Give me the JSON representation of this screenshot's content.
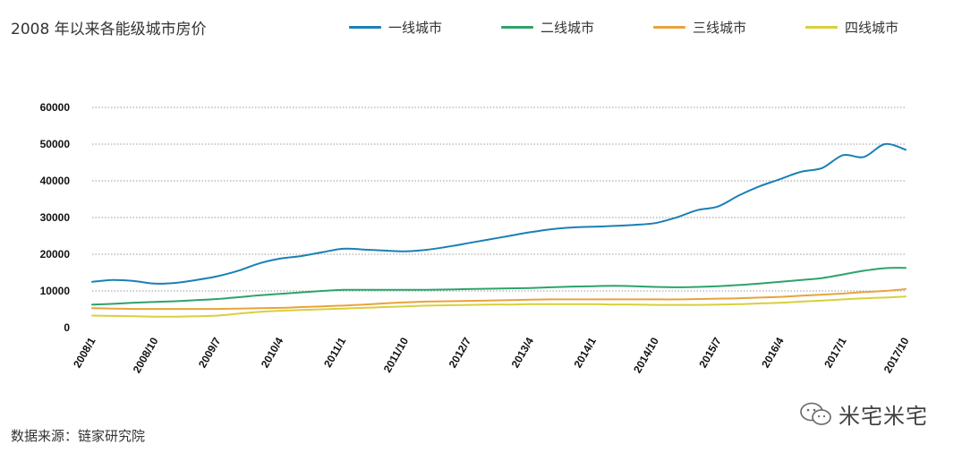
{
  "chart_data": {
    "type": "line",
    "title": "2008 年以来各能级城市房价",
    "xlabel": "",
    "ylabel": "",
    "x_tick_labels": [
      "2008/1",
      "2008/10",
      "2009/7",
      "2010/4",
      "2011/1",
      "2011/10",
      "2012/7",
      "2013/4",
      "2014/1",
      "2014/10",
      "2015/7",
      "2016/4",
      "2017/1",
      "2017/10"
    ],
    "y_ticks": [
      0,
      10000,
      20000,
      30000,
      40000,
      50000,
      60000
    ],
    "ylim": [
      0,
      60000
    ],
    "grid": "horizontal dotted",
    "legend_placement": "top",
    "months": [
      "2008/1",
      "2008/4",
      "2008/7",
      "2008/10",
      "2009/1",
      "2009/4",
      "2009/7",
      "2009/10",
      "2010/1",
      "2010/4",
      "2010/7",
      "2010/10",
      "2011/1",
      "2011/4",
      "2011/7",
      "2011/10",
      "2012/1",
      "2012/4",
      "2012/7",
      "2012/10",
      "2013/1",
      "2013/4",
      "2013/7",
      "2013/10",
      "2014/1",
      "2014/4",
      "2014/7",
      "2014/10",
      "2015/1",
      "2015/4",
      "2015/7",
      "2015/10",
      "2016/1",
      "2016/4",
      "2016/7",
      "2016/10",
      "2017/1",
      "2017/4",
      "2017/7",
      "2017/10"
    ],
    "series": [
      {
        "name": "一线城市",
        "color": "#1a80b6",
        "values": [
          12500,
          13000,
          12700,
          12000,
          12200,
          13000,
          14000,
          15500,
          17500,
          18800,
          19500,
          20500,
          21500,
          21300,
          21000,
          20800,
          21200,
          22000,
          23000,
          24000,
          25000,
          26000,
          26800,
          27300,
          27500,
          27700,
          28000,
          28500,
          30000,
          32000,
          33000,
          36000,
          38500,
          40500,
          42500,
          43500,
          47000,
          46500,
          50000,
          48500
        ]
      },
      {
        "name": "二线城市",
        "color": "#2ea36b",
        "values": [
          6300,
          6500,
          6800,
          7000,
          7200,
          7500,
          7800,
          8300,
          8800,
          9200,
          9600,
          10000,
          10300,
          10300,
          10300,
          10300,
          10300,
          10400,
          10500,
          10600,
          10700,
          10800,
          11000,
          11200,
          11300,
          11400,
          11300,
          11100,
          11000,
          11100,
          11300,
          11600,
          12000,
          12500,
          13000,
          13500,
          14500,
          15500,
          16200,
          16300
        ]
      },
      {
        "name": "三线城市",
        "color": "#e8a33c",
        "values": [
          5300,
          5200,
          5100,
          5100,
          5100,
          5100,
          5100,
          5200,
          5300,
          5400,
          5600,
          5800,
          6000,
          6300,
          6600,
          6900,
          7100,
          7200,
          7300,
          7400,
          7500,
          7600,
          7700,
          7700,
          7700,
          7700,
          7700,
          7700,
          7700,
          7800,
          7900,
          8000,
          8200,
          8400,
          8700,
          9000,
          9300,
          9700,
          10000,
          10500
        ]
      },
      {
        "name": "四线城市",
        "color": "#d9cf3c",
        "values": [
          3300,
          3200,
          3100,
          3000,
          3000,
          3100,
          3300,
          3800,
          4300,
          4600,
          4800,
          5000,
          5200,
          5400,
          5600,
          5800,
          6000,
          6100,
          6200,
          6300,
          6300,
          6400,
          6400,
          6400,
          6400,
          6300,
          6300,
          6200,
          6200,
          6200,
          6300,
          6400,
          6600,
          6800,
          7100,
          7400,
          7700,
          8000,
          8200,
          8500
        ]
      }
    ],
    "annotations": {
      "source": "数据来源：链家研究院",
      "watermark": "米宅米宅"
    }
  }
}
